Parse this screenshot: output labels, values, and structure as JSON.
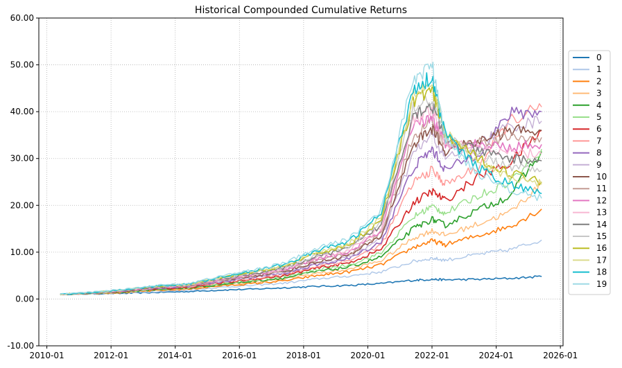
{
  "chart_data": {
    "type": "line",
    "title": "Historical Compounded Cumulative Returns",
    "xlabel": "",
    "ylabel": "",
    "x_ticks": [
      "2010-01",
      "2012-01",
      "2014-01",
      "2016-01",
      "2018-01",
      "2020-01",
      "2022-01",
      "2024-01",
      "2026-01"
    ],
    "y_ticks": [
      "-10.00",
      "0.00",
      "10.00",
      "20.00",
      "30.00",
      "40.00",
      "50.00",
      "60.00"
    ],
    "ylim": [
      -10,
      60
    ],
    "xlim": [
      "2009-10",
      "2026-02"
    ],
    "grid": true,
    "legend_position": "right",
    "x": [
      "2010-06",
      "2011-06",
      "2012-06",
      "2013-06",
      "2014-06",
      "2015-06",
      "2016-06",
      "2017-06",
      "2018-06",
      "2019-06",
      "2020-06",
      "2021-06",
      "2022-01",
      "2022-06",
      "2023-06",
      "2024-06",
      "2025-06"
    ],
    "series": [
      {
        "name": "0",
        "color": "#1f77b4",
        "values": [
          1.0,
          1.1,
          1.2,
          1.4,
          1.6,
          1.9,
          2.1,
          2.4,
          2.7,
          2.9,
          3.3,
          4.0,
          4.2,
          4.1,
          4.2,
          4.4,
          4.8
        ]
      },
      {
        "name": "1",
        "color": "#aec7e8",
        "values": [
          1.0,
          1.1,
          1.3,
          1.6,
          1.9,
          2.5,
          2.9,
          3.4,
          4.3,
          4.9,
          5.8,
          8.0,
          8.7,
          8.3,
          9.5,
          10.5,
          12.6
        ]
      },
      {
        "name": "2",
        "color": "#ff7f0e",
        "values": [
          1.0,
          1.2,
          1.4,
          1.8,
          2.1,
          2.8,
          3.3,
          3.9,
          5.0,
          5.8,
          7.3,
          11.0,
          12.4,
          11.6,
          13.5,
          15.5,
          19.2
        ]
      },
      {
        "name": "3",
        "color": "#ffbb78",
        "values": [
          1.0,
          1.2,
          1.5,
          1.9,
          2.2,
          3.0,
          3.6,
          4.3,
          5.5,
          6.3,
          8.2,
          13.0,
          14.6,
          13.6,
          16.0,
          18.5,
          24.5
        ]
      },
      {
        "name": "4",
        "color": "#2ca02c",
        "values": [
          1.0,
          1.2,
          1.5,
          2.0,
          2.3,
          3.1,
          3.8,
          4.5,
          5.9,
          6.8,
          9.0,
          15.0,
          17.0,
          15.8,
          19.0,
          22.0,
          31.5
        ]
      },
      {
        "name": "5",
        "color": "#98df8a",
        "values": [
          1.0,
          1.2,
          1.6,
          2.1,
          2.4,
          3.3,
          4.0,
          4.8,
          6.3,
          7.3,
          9.8,
          17.5,
          19.8,
          18.3,
          22.0,
          25.0,
          32.0
        ]
      },
      {
        "name": "6",
        "color": "#d62728",
        "values": [
          1.0,
          1.3,
          1.6,
          2.2,
          2.5,
          3.4,
          4.2,
          5.0,
          6.6,
          7.7,
          10.6,
          20.5,
          23.0,
          21.0,
          26.0,
          29.0,
          36.0
        ]
      },
      {
        "name": "7",
        "color": "#ff9896",
        "values": [
          1.0,
          1.3,
          1.7,
          2.3,
          2.6,
          3.6,
          4.4,
          5.3,
          7.0,
          8.2,
          11.5,
          25.0,
          27.5,
          24.5,
          28.0,
          38.0,
          41.0
        ]
      },
      {
        "name": "8",
        "color": "#9467bd",
        "values": [
          1.0,
          1.3,
          1.7,
          2.3,
          2.7,
          3.7,
          4.6,
          5.5,
          7.3,
          8.6,
          12.2,
          28.0,
          32.0,
          27.5,
          31.0,
          39.5,
          40.0
        ]
      },
      {
        "name": "9",
        "color": "#c5b0d5",
        "values": [
          1.0,
          1.3,
          1.7,
          2.4,
          2.7,
          3.8,
          4.7,
          5.7,
          7.6,
          8.9,
          12.8,
          31.0,
          35.0,
          30.0,
          33.0,
          37.0,
          38.0
        ]
      },
      {
        "name": "10",
        "color": "#8c564b",
        "values": [
          1.0,
          1.3,
          1.8,
          2.4,
          2.8,
          3.9,
          4.9,
          5.9,
          7.9,
          9.3,
          13.4,
          33.0,
          36.5,
          31.5,
          33.5,
          36.0,
          36.0
        ]
      },
      {
        "name": "11",
        "color": "#c49c94",
        "values": [
          1.0,
          1.3,
          1.8,
          2.5,
          2.8,
          4.0,
          5.0,
          6.1,
          8.2,
          9.7,
          14.0,
          35.0,
          38.0,
          32.5,
          33.5,
          34.5,
          34.5
        ]
      },
      {
        "name": "12",
        "color": "#e377c2",
        "values": [
          1.0,
          1.3,
          1.8,
          2.5,
          2.9,
          4.1,
          5.2,
          6.3,
          8.5,
          10.0,
          14.6,
          36.5,
          39.0,
          33.0,
          33.0,
          32.5,
          33.0
        ]
      },
      {
        "name": "13",
        "color": "#f7b6d2",
        "values": [
          1.0,
          1.4,
          1.9,
          2.6,
          2.9,
          4.2,
          5.3,
          6.4,
          8.8,
          10.4,
          15.2,
          38.0,
          40.0,
          33.5,
          32.0,
          31.0,
          31.0
        ]
      },
      {
        "name": "14",
        "color": "#7f7f7f",
        "values": [
          1.0,
          1.4,
          1.9,
          2.6,
          3.0,
          4.3,
          5.4,
          6.6,
          9.1,
          10.8,
          15.8,
          39.5,
          41.5,
          34.0,
          31.5,
          30.0,
          29.5
        ]
      },
      {
        "name": "15",
        "color": "#c7c7c7",
        "values": [
          1.0,
          1.4,
          1.9,
          2.7,
          3.0,
          4.4,
          5.6,
          6.8,
          9.4,
          11.1,
          16.4,
          41.0,
          43.0,
          34.5,
          30.5,
          28.5,
          27.5
        ]
      },
      {
        "name": "16",
        "color": "#bcbd22",
        "values": [
          1.0,
          1.4,
          2.0,
          2.7,
          3.1,
          4.5,
          5.7,
          7.0,
          9.7,
          11.5,
          17.0,
          42.5,
          44.5,
          35.0,
          30.0,
          27.0,
          25.0
        ]
      },
      {
        "name": "17",
        "color": "#dbdb8d",
        "values": [
          1.0,
          1.4,
          2.0,
          2.8,
          3.1,
          4.6,
          5.8,
          7.2,
          10.0,
          11.9,
          17.6,
          44.0,
          46.0,
          35.5,
          29.0,
          26.0,
          24.5
        ]
      },
      {
        "name": "18",
        "color": "#17becf",
        "values": [
          1.0,
          1.4,
          2.0,
          2.8,
          3.2,
          4.7,
          6.0,
          7.4,
          10.3,
          12.3,
          18.2,
          45.0,
          47.5,
          35.0,
          28.0,
          24.5,
          22.5
        ]
      },
      {
        "name": "19",
        "color": "#9edae5",
        "values": [
          1.0,
          1.5,
          2.1,
          2.9,
          3.3,
          4.9,
          6.2,
          7.7,
          10.8,
          12.9,
          19.0,
          47.0,
          50.0,
          34.0,
          27.0,
          23.5,
          21.5
        ]
      }
    ]
  }
}
